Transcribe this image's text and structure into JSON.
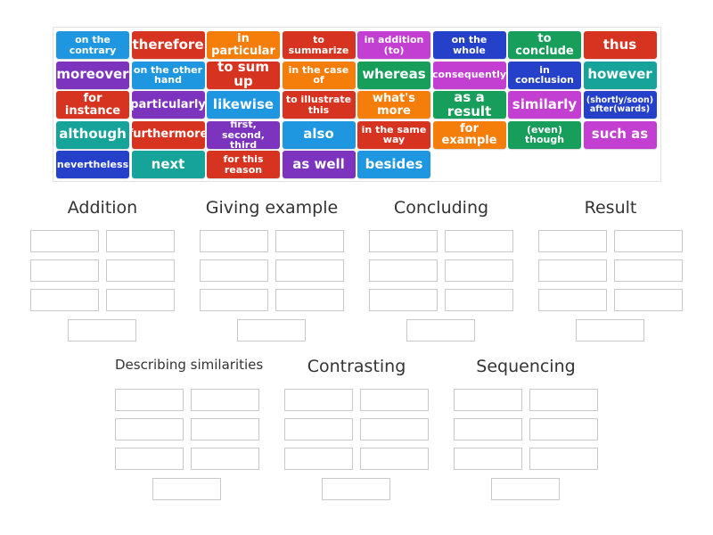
{
  "colors": {
    "blue": "#1f97e0",
    "red": "#d63320",
    "orange": "#f57d0a",
    "magenta": "#c23fd1",
    "navy": "#2641c9",
    "purple": "#7c33bd",
    "green": "#169e5a",
    "teal": "#15a39a"
  },
  "tiles": [
    {
      "label": "on the contrary",
      "color": "blue",
      "size": "s"
    },
    {
      "label": "therefore",
      "color": "red",
      "size": "l"
    },
    {
      "label": "in particular",
      "color": "orange",
      "size": "m"
    },
    {
      "label": "to summarize",
      "color": "red",
      "size": "s"
    },
    {
      "label": "in addition (to)",
      "color": "magenta",
      "size": "s"
    },
    {
      "label": "on the whole",
      "color": "navy",
      "size": "s"
    },
    {
      "label": "to conclude",
      "color": "green",
      "size": "m"
    },
    {
      "label": "thus",
      "color": "red",
      "size": "l"
    },
    {
      "label": "moreover",
      "color": "purple",
      "size": "l"
    },
    {
      "label": "on the other hand",
      "color": "blue",
      "size": "s"
    },
    {
      "label": "to sum up",
      "color": "red",
      "size": "l"
    },
    {
      "label": "in the case of",
      "color": "orange",
      "size": "s"
    },
    {
      "label": "whereas",
      "color": "green",
      "size": "l"
    },
    {
      "label": "consequently",
      "color": "magenta",
      "size": "s"
    },
    {
      "label": "in conclusion",
      "color": "navy",
      "size": "s"
    },
    {
      "label": "however",
      "color": "teal",
      "size": "l"
    },
    {
      "label": "for instance",
      "color": "red",
      "size": "m"
    },
    {
      "label": "particularly",
      "color": "purple",
      "size": "m"
    },
    {
      "label": "likewise",
      "color": "blue",
      "size": "l"
    },
    {
      "label": "to illustrate this",
      "color": "red",
      "size": "s"
    },
    {
      "label": "what's more",
      "color": "orange",
      "size": "m"
    },
    {
      "label": "as a result",
      "color": "green",
      "size": "l"
    },
    {
      "label": "similarly",
      "color": "magenta",
      "size": "l"
    },
    {
      "label": "(shortly/soon) after(wards)",
      "color": "navy",
      "size": "xs"
    },
    {
      "label": "although",
      "color": "teal",
      "size": "l"
    },
    {
      "label": "furthermore",
      "color": "red",
      "size": "m"
    },
    {
      "label": "first, second, third",
      "color": "purple",
      "size": "s"
    },
    {
      "label": "also",
      "color": "blue",
      "size": "l"
    },
    {
      "label": "in the same way",
      "color": "red",
      "size": "s"
    },
    {
      "label": "for example",
      "color": "orange",
      "size": "m"
    },
    {
      "label": "(even) though",
      "color": "green",
      "size": "s"
    },
    {
      "label": "such as",
      "color": "magenta",
      "size": "l"
    },
    {
      "label": "nevertheless",
      "color": "navy",
      "size": "s"
    },
    {
      "label": "next",
      "color": "teal",
      "size": "l"
    },
    {
      "label": "for this reason",
      "color": "red",
      "size": "s"
    },
    {
      "label": "as well",
      "color": "purple",
      "size": "l"
    },
    {
      "label": "besides",
      "color": "blue",
      "size": "l"
    }
  ],
  "groups": [
    {
      "id": "addition",
      "title": "Addition",
      "slots": 7
    },
    {
      "id": "giving-example",
      "title": "Giving example",
      "slots": 7
    },
    {
      "id": "concluding",
      "title": "Concluding",
      "slots": 7
    },
    {
      "id": "result",
      "title": "Result",
      "slots": 7
    },
    {
      "id": "describing-similarities",
      "title": "Describing similarities",
      "slots": 7
    },
    {
      "id": "contrasting",
      "title": "Contrasting",
      "slots": 7
    },
    {
      "id": "sequencing",
      "title": "Sequencing",
      "slots": 7
    }
  ]
}
